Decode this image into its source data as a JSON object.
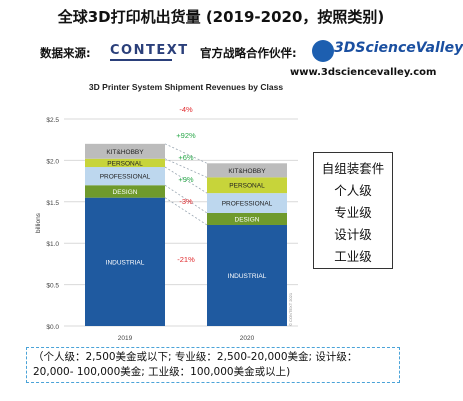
{
  "page": {
    "title": "全球3D打印机出货量 (2019-2020，按照类别)",
    "source_label": "数据来源:",
    "source_logo_text": "CONTEXT",
    "partner_label": "官方战略合作伙伴:",
    "partner_logo_text": "3DScienceValley",
    "partner_url": "www.3dsciencevalley.com",
    "legend_items": [
      "自组装套件",
      "个人级",
      "专业级",
      "设计级",
      "工业级"
    ],
    "note": "（个人级：2,500美金或以下; 专业级：2,500-20,000美金; 设计级：20,000- 100,000美金; 工业级：100,000美金或以上)"
  },
  "chart_data": {
    "type": "bar",
    "stacked": true,
    "title": "3D Printer System Shipment Revenues by Class",
    "ylabel": "billions",
    "xlabel": "",
    "ylim": [
      0,
      2.5
    ],
    "y_ticks": [
      "$0.0",
      "$0.5",
      "$1.0",
      "$1.5",
      "$2.0",
      "$2.5"
    ],
    "categories": [
      "2019",
      "2020"
    ],
    "series": [
      {
        "name": "INDUSTRIAL",
        "color": "#1f5aa0",
        "values": [
          1.55,
          1.22
        ]
      },
      {
        "name": "DESIGN",
        "color": "#6f9a2c",
        "values": [
          0.15,
          0.145
        ]
      },
      {
        "name": "PROFESSIONAL",
        "color": "#bdd7ee",
        "values": [
          0.22,
          0.24
        ]
      },
      {
        "name": "PERSONAL",
        "color": "#c7d43a",
        "values": [
          0.1,
          0.19
        ]
      },
      {
        "name": "KIT&HOBBY",
        "color": "#bcbcbc",
        "values": [
          0.18,
          0.17
        ]
      }
    ],
    "changes": [
      {
        "label": "-4%",
        "color": "#e0282c"
      },
      {
        "label": "+92%",
        "color": "#2aa84a"
      },
      {
        "label": "+6%",
        "color": "#2aa84a"
      },
      {
        "label": "+9%",
        "color": "#2aa84a"
      },
      {
        "label": "-3%",
        "color": "#e0282c"
      },
      {
        "label": "-21%",
        "color": "#e0282c"
      }
    ],
    "watermark": "© CONTEXT 2021"
  }
}
